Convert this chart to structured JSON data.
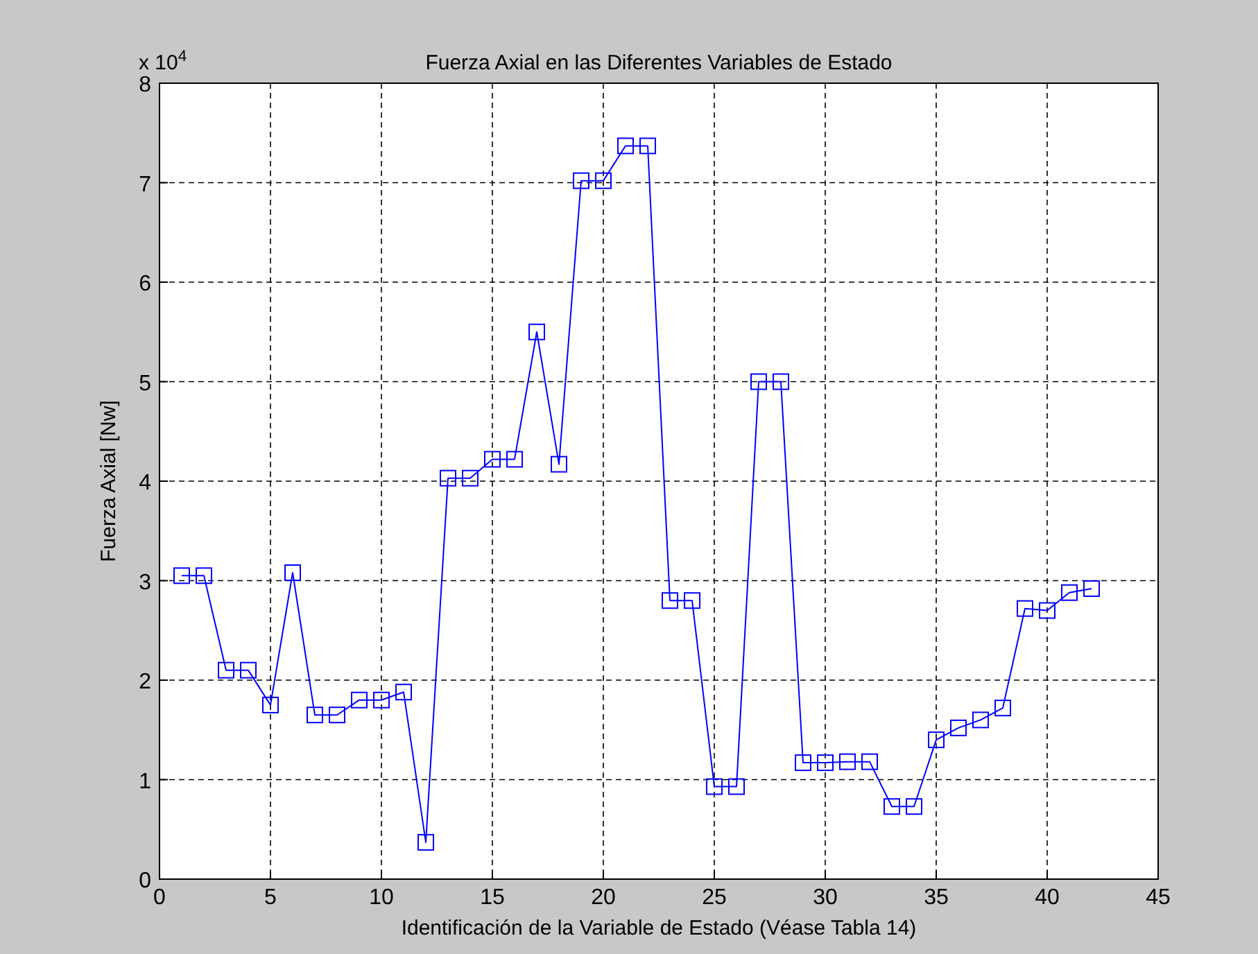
{
  "chart_data": {
    "type": "line",
    "title": "Fuerza Axial en las Diferentes Variables de Estado",
    "xlabel": "Identificación de la Variable de Estado (Véase Tabla 14)",
    "ylabel": "Fuerza Axial [Nw]",
    "annotations": [
      "x 10$^{4}$"
    ],
    "x": [
      1,
      2,
      3,
      4,
      5,
      6,
      7,
      8,
      9,
      10,
      11,
      12,
      13,
      14,
      15,
      16,
      17,
      18,
      19,
      20,
      21,
      22,
      23,
      24,
      25,
      26,
      27,
      28,
      29,
      30,
      31,
      32,
      33,
      34,
      35,
      36,
      37,
      38,
      39,
      40,
      41,
      42
    ],
    "series": [
      {
        "color": "#0000ff",
        "values": [
          3.05,
          3.05,
          2.1,
          2.1,
          1.75,
          3.08,
          1.65,
          1.65,
          1.8,
          1.8,
          1.88,
          0.37,
          4.03,
          4.03,
          4.22,
          4.22,
          5.5,
          4.17,
          7.02,
          7.02,
          7.37,
          7.37,
          2.8,
          2.8,
          0.93,
          0.93,
          5.0,
          5.0,
          1.17,
          1.17,
          1.18,
          1.18,
          0.73,
          0.73,
          1.4,
          1.52,
          1.6,
          1.72,
          2.72,
          2.7,
          2.88,
          2.92
        ]
      }
    ],
    "xlim": [
      0,
      45
    ],
    "xticks": [
      0,
      5,
      10,
      15,
      20,
      25,
      30,
      35,
      40,
      45
    ],
    "ylim": [
      0,
      8
    ],
    "yticks": [
      0,
      1,
      2,
      3,
      4,
      5,
      6,
      7,
      8
    ],
    "grid": true,
    "marker": "square",
    "line_style": "solid"
  }
}
